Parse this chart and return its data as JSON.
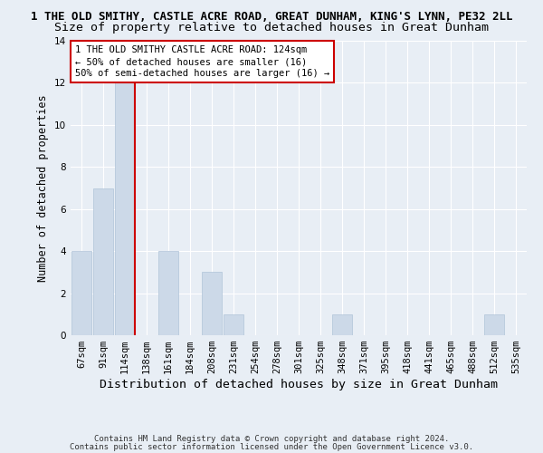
{
  "title": "1 THE OLD SMITHY, CASTLE ACRE ROAD, GREAT DUNHAM, KING'S LYNN, PE32 2LL",
  "subtitle": "Size of property relative to detached houses in Great Dunham",
  "xlabel": "Distribution of detached houses by size in Great Dunham",
  "ylabel": "Number of detached properties",
  "footnote1": "Contains HM Land Registry data © Crown copyright and database right 2024.",
  "footnote2": "Contains public sector information licensed under the Open Government Licence v3.0.",
  "bins": [
    "67sqm",
    "91sqm",
    "114sqm",
    "138sqm",
    "161sqm",
    "184sqm",
    "208sqm",
    "231sqm",
    "254sqm",
    "278sqm",
    "301sqm",
    "325sqm",
    "348sqm",
    "371sqm",
    "395sqm",
    "418sqm",
    "441sqm",
    "465sqm",
    "488sqm",
    "512sqm",
    "535sqm"
  ],
  "values": [
    4,
    7,
    12,
    0,
    4,
    0,
    3,
    1,
    0,
    0,
    0,
    0,
    1,
    0,
    0,
    0,
    0,
    0,
    0,
    1,
    0
  ],
  "bar_color": "#ccd9e8",
  "bar_edgecolor": "#b0c4d8",
  "redline_bin_index": 2,
  "ylim": [
    0,
    14
  ],
  "yticks": [
    0,
    2,
    4,
    6,
    8,
    10,
    12,
    14
  ],
  "bg_color": "#e8eef5",
  "grid_color": "#ffffff",
  "annotation_line1": "1 THE OLD SMITHY CASTLE ACRE ROAD: 124sqm",
  "annotation_line2": "← 50% of detached houses are smaller (16)",
  "annotation_line3": "50% of semi-detached houses are larger (16) →",
  "annotation_box_color": "#ffffff",
  "annotation_box_edgecolor": "#cc0000",
  "title_fontsize": 9.0,
  "subtitle_fontsize": 9.5,
  "xlabel_fontsize": 9.5,
  "ylabel_fontsize": 8.5,
  "tick_fontsize": 7.5,
  "annotation_fontsize": 7.5,
  "footnote_fontsize": 6.5
}
